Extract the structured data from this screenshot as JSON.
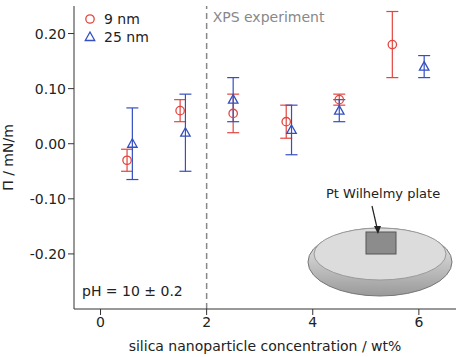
{
  "chart_data": {
    "type": "scatter",
    "xlabel": "silica nanoparticle concentration / wt%",
    "ylabel": "Π / mN/m",
    "xlim": [
      -0.5,
      6.7
    ],
    "ylim": [
      -0.3,
      0.25
    ],
    "xticks": [
      0,
      2,
      4,
      6
    ],
    "yticks": [
      {
        "value": -0.2,
        "label": "-0.20"
      },
      {
        "value": -0.1,
        "label": "-0.10"
      },
      {
        "value": 0,
        "label": "0.00"
      },
      {
        "value": 0.1,
        "label": "0.10"
      },
      {
        "value": 0.2,
        "label": "0.20"
      }
    ],
    "grid": false,
    "legend": "upper left",
    "series": [
      {
        "name": "9 nm",
        "color": "#e2463f",
        "marker": "circle",
        "x": [
          0.5,
          1.5,
          2.5,
          3.5,
          4.5,
          5.5
        ],
        "values": [
          -0.03,
          0.06,
          0.055,
          0.04,
          0.08,
          0.18
        ],
        "errors": [
          0.02,
          0.02,
          0.035,
          0.03,
          0.01,
          0.06
        ]
      },
      {
        "name": "25 nm",
        "color": "#3450c0",
        "marker": "triangle",
        "x": [
          0.6,
          1.6,
          2.5,
          3.6,
          4.5,
          6.1
        ],
        "values": [
          0.0,
          0.02,
          0.08,
          0.025,
          0.06,
          0.14
        ],
        "errors": [
          0.065,
          0.07,
          0.04,
          0.045,
          0.02,
          0.02
        ]
      }
    ],
    "annotations": [
      {
        "text": "XPS experiment",
        "x": 2,
        "line_style": "dashed"
      },
      {
        "text": "pH = 10 ± 0.2"
      },
      {
        "text": "Pt Wilhelmy plate"
      }
    ]
  }
}
